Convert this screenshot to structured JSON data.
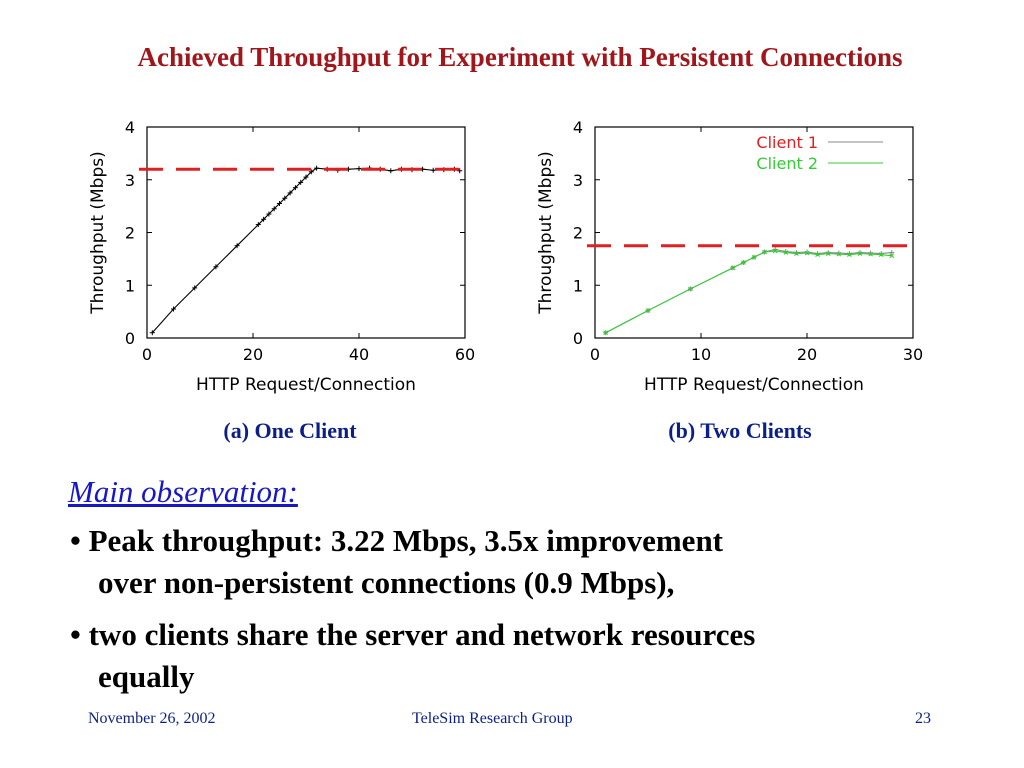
{
  "slide": {
    "title": "Achieved Throughput for Experiment with Persistent Connections",
    "observation_heading": "Main observation:",
    "bullets": [
      {
        "lead": "• ",
        "line1": "Peak throughput: 3.22 Mbps, 3.5x improvement",
        "line2": "over non-persistent connections (0.9 Mbps),"
      },
      {
        "lead": "• ",
        "line1": "two clients share the server and network resources",
        "line2": "equally"
      }
    ],
    "footer": {
      "date": "November 26, 2002",
      "org": "TeleSim Research Group",
      "page": "23"
    }
  },
  "chart_data": [
    {
      "type": "line",
      "caption": "(a) One Client",
      "xlabel": "HTTP Request/Connection",
      "ylabel": "Throughput (Mbps)",
      "xlim": [
        0,
        60
      ],
      "ylim": [
        0,
        4
      ],
      "xticks": [
        0,
        20,
        40,
        60
      ],
      "yticks": [
        0,
        1,
        2,
        3,
        4
      ],
      "grid": false,
      "reference_line": {
        "y": 3.2,
        "color": "#e02020",
        "style": "dashed"
      },
      "series": [
        {
          "name": "",
          "color": "#000000",
          "x": [
            1,
            5,
            9,
            13,
            17,
            21,
            22,
            23,
            24,
            25,
            26,
            27,
            28,
            29,
            30,
            31,
            32,
            34,
            36,
            38,
            40,
            42,
            44,
            46,
            48,
            50,
            52,
            54,
            56,
            58,
            59
          ],
          "y": [
            0.1,
            0.55,
            0.95,
            1.35,
            1.75,
            2.15,
            2.25,
            2.35,
            2.45,
            2.55,
            2.65,
            2.75,
            2.85,
            2.95,
            3.05,
            3.15,
            3.22,
            3.2,
            3.18,
            3.2,
            3.21,
            3.22,
            3.2,
            3.17,
            3.2,
            3.19,
            3.2,
            3.18,
            3.19,
            3.2,
            3.17
          ]
        }
      ]
    },
    {
      "type": "line",
      "caption": "(b) Two Clients",
      "xlabel": "HTTP Request/Connection",
      "ylabel": "Throughput (Mbps)",
      "xlim": [
        0,
        30
      ],
      "ylim": [
        0,
        4
      ],
      "xticks": [
        0,
        10,
        20,
        30
      ],
      "yticks": [
        0,
        1,
        2,
        3,
        4
      ],
      "grid": false,
      "legend": "top-right",
      "reference_line": {
        "y": 1.75,
        "color": "#e02020",
        "style": "dashed"
      },
      "series": [
        {
          "name": "Client 1",
          "color": "#888888",
          "x": [
            1,
            5,
            9,
            13,
            14,
            15,
            16,
            17,
            18,
            19,
            20,
            21,
            22,
            23,
            24,
            25,
            26,
            27,
            28
          ],
          "y": [
            0.1,
            0.52,
            0.93,
            1.33,
            1.43,
            1.53,
            1.63,
            1.68,
            1.64,
            1.62,
            1.63,
            1.6,
            1.62,
            1.61,
            1.6,
            1.62,
            1.61,
            1.6,
            1.62
          ]
        },
        {
          "name": "Client 2",
          "color": "#33cc33",
          "x": [
            1,
            5,
            9,
            13,
            14,
            15,
            16,
            17,
            18,
            19,
            20,
            21,
            22,
            23,
            24,
            25,
            26,
            27,
            28
          ],
          "y": [
            0.1,
            0.52,
            0.93,
            1.33,
            1.43,
            1.53,
            1.63,
            1.65,
            1.62,
            1.6,
            1.61,
            1.58,
            1.6,
            1.59,
            1.58,
            1.6,
            1.59,
            1.58,
            1.56
          ]
        }
      ]
    }
  ]
}
